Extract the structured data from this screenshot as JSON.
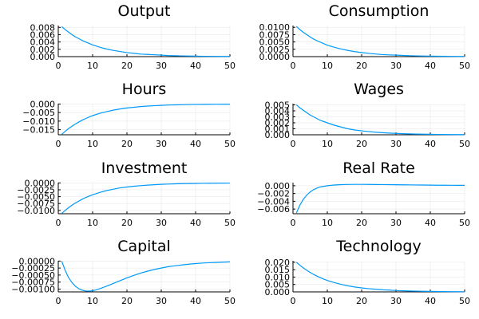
{
  "page": {
    "background": "#ffffff"
  },
  "colors": {
    "series": "#009af9"
  },
  "chart_data": [
    {
      "type": "line",
      "title": "Output",
      "xlim": [
        0,
        50
      ],
      "ylim": [
        0,
        0.0085
      ],
      "xticks": [
        0,
        10,
        20,
        30,
        40,
        50
      ],
      "xtick_labels": [
        "0",
        "10",
        "20",
        "30",
        "40",
        "50"
      ],
      "yticks": [
        0,
        0.002,
        0.004,
        0.006,
        0.008
      ],
      "ytick_labels": [
        "0.000",
        "0.002",
        "0.004",
        "0.006",
        "0.008"
      ],
      "grid": true,
      "legend": false,
      "series": [
        {
          "x": [
            1,
            2,
            3,
            4,
            5,
            6,
            7,
            8,
            9,
            10,
            12,
            14,
            16,
            18,
            20,
            22,
            24,
            26,
            28,
            30,
            32,
            34,
            36,
            38,
            40,
            42,
            44,
            46,
            48,
            50
          ],
          "values": [
            0.0082,
            0.0074,
            0.0067,
            0.006,
            0.0054,
            0.0049,
            0.0044,
            0.004,
            0.0036,
            0.0032,
            0.0026,
            0.0021,
            0.0017,
            0.0014,
            0.0011,
            0.0009,
            0.0007,
            0.0006,
            0.0005,
            0.0004,
            0.0003,
            0.00025,
            0.0002,
            0.00016,
            0.00013,
            0.0001,
            8e-05,
            7e-05,
            6e-05,
            5e-05
          ]
        }
      ]
    },
    {
      "type": "line",
      "title": "Consumption",
      "xlim": [
        0,
        50
      ],
      "ylim": [
        0,
        0.0106
      ],
      "xticks": [
        0,
        10,
        20,
        30,
        40,
        50
      ],
      "xtick_labels": [
        "0",
        "10",
        "20",
        "30",
        "40",
        "50"
      ],
      "yticks": [
        0,
        0.0025,
        0.005,
        0.0075,
        0.01
      ],
      "ytick_labels": [
        "0.0000",
        "0.0025",
        "0.0050",
        "0.0075",
        "0.0100"
      ],
      "grid": true,
      "legend": false,
      "series": [
        {
          "x": [
            1,
            2,
            3,
            4,
            5,
            6,
            7,
            8,
            9,
            10,
            12,
            14,
            16,
            18,
            20,
            22,
            24,
            26,
            28,
            30,
            32,
            34,
            36,
            38,
            40,
            42,
            44,
            46,
            48,
            50
          ],
          "values": [
            0.0103,
            0.0092,
            0.0083,
            0.0075,
            0.0067,
            0.006,
            0.0054,
            0.0049,
            0.0044,
            0.0039,
            0.0032,
            0.0026,
            0.0021,
            0.0017,
            0.0014,
            0.0011,
            0.0009,
            0.0007,
            0.0006,
            0.0005,
            0.0004,
            0.00032,
            0.00026,
            0.0002,
            0.00016,
            0.00013,
            0.0001,
            8e-05,
            7e-05,
            6e-05
          ]
        }
      ]
    },
    {
      "type": "line",
      "title": "Hours",
      "xlim": [
        0,
        50
      ],
      "ylim": [
        -0.018,
        0.0002
      ],
      "xticks": [
        0,
        10,
        20,
        30,
        40,
        50
      ],
      "xtick_labels": [
        "0",
        "10",
        "20",
        "30",
        "40",
        "50"
      ],
      "yticks": [
        -0.015,
        -0.01,
        -0.005,
        0
      ],
      "ytick_labels": [
        "−0.015",
        "−0.010",
        "−0.005",
        "0.000"
      ],
      "grid": true,
      "legend": false,
      "series": [
        {
          "x": [
            1,
            2,
            3,
            4,
            5,
            6,
            7,
            8,
            9,
            10,
            12,
            14,
            16,
            18,
            20,
            22,
            24,
            26,
            28,
            30,
            32,
            34,
            36,
            38,
            40,
            42,
            44,
            46,
            48,
            50
          ],
          "values": [
            -0.0178,
            -0.016,
            -0.0144,
            -0.013,
            -0.0117,
            -0.0105,
            -0.0094,
            -0.0085,
            -0.0076,
            -0.0068,
            -0.0055,
            -0.0045,
            -0.0036,
            -0.0029,
            -0.0023,
            -0.0019,
            -0.0015,
            -0.0012,
            -0.001,
            -0.0008,
            -0.0006,
            -0.0005,
            -0.0004,
            -0.0003,
            -0.00025,
            -0.0002,
            -0.00016,
            -0.00013,
            -0.0001,
            -8e-05
          ]
        }
      ]
    },
    {
      "type": "line",
      "title": "Wages",
      "xlim": [
        0,
        50
      ],
      "ylim": [
        0,
        0.0052
      ],
      "xticks": [
        0,
        10,
        20,
        30,
        40,
        50
      ],
      "xtick_labels": [
        "0",
        "10",
        "20",
        "30",
        "40",
        "50"
      ],
      "yticks": [
        0,
        0.001,
        0.002,
        0.003,
        0.004,
        0.005
      ],
      "ytick_labels": [
        "0.000",
        "0.001",
        "0.002",
        "0.003",
        "0.004",
        "0.005"
      ],
      "grid": true,
      "legend": false,
      "series": [
        {
          "x": [
            1,
            2,
            3,
            4,
            5,
            6,
            7,
            8,
            9,
            10,
            12,
            14,
            16,
            18,
            20,
            22,
            24,
            26,
            28,
            30,
            32,
            34,
            36,
            38,
            40,
            42,
            44,
            46,
            48,
            50
          ],
          "values": [
            0.005,
            0.0045,
            0.0041,
            0.0037,
            0.0033,
            0.003,
            0.0027,
            0.0024,
            0.0022,
            0.002,
            0.0016,
            0.0013,
            0.001,
            0.0008,
            0.00066,
            0.00054,
            0.00043,
            0.00035,
            0.00028,
            0.00023,
            0.00018,
            0.00015,
            0.00012,
            0.0001,
            8e-05,
            6e-05,
            5e-05,
            4e-05,
            3e-05,
            3e-05
          ]
        }
      ]
    },
    {
      "type": "line",
      "title": "Investment",
      "xlim": [
        0,
        50
      ],
      "ylim": [
        -0.0112,
        0.0001
      ],
      "xticks": [
        0,
        10,
        20,
        30,
        40,
        50
      ],
      "xtick_labels": [
        "0",
        "10",
        "20",
        "30",
        "40",
        "50"
      ],
      "yticks": [
        -0.01,
        -0.0075,
        -0.005,
        -0.0025,
        0
      ],
      "ytick_labels": [
        "−0.0100",
        "−0.0075",
        "−0.0050",
        "−0.0025",
        "0.0000"
      ],
      "grid": true,
      "legend": false,
      "series": [
        {
          "x": [
            1,
            2,
            3,
            4,
            5,
            6,
            7,
            8,
            9,
            10,
            12,
            14,
            16,
            18,
            20,
            22,
            24,
            26,
            28,
            30,
            32,
            34,
            36,
            38,
            40,
            42,
            44,
            46,
            48,
            50
          ],
          "values": [
            -0.0111,
            -0.01,
            -0.009,
            -0.0081,
            -0.0073,
            -0.0066,
            -0.0059,
            -0.0053,
            -0.0048,
            -0.0043,
            -0.0035,
            -0.0028,
            -0.0023,
            -0.0018,
            -0.0015,
            -0.0012,
            -0.001,
            -0.0008,
            -0.00065,
            -0.00052,
            -0.00042,
            -0.00034,
            -0.00027,
            -0.00022,
            -0.00018,
            -0.00014,
            -0.00011,
            -9e-05,
            -7e-05,
            -6e-05
          ]
        }
      ]
    },
    {
      "type": "line",
      "title": "Real Rate",
      "xlim": [
        0,
        50
      ],
      "ylim": [
        -0.0072,
        0.0008
      ],
      "xticks": [
        0,
        10,
        20,
        30,
        40,
        50
      ],
      "xtick_labels": [
        "0",
        "10",
        "20",
        "30",
        "40",
        "50"
      ],
      "yticks": [
        -0.006,
        -0.004,
        -0.002,
        0
      ],
      "ytick_labels": [
        "−0.006",
        "−0.004",
        "−0.002",
        "0.000"
      ],
      "grid": true,
      "legend": false,
      "series": [
        {
          "x": [
            1,
            2,
            3,
            4,
            5,
            6,
            7,
            8,
            10,
            12,
            14,
            16,
            18,
            20,
            22,
            24,
            26,
            28,
            30,
            32,
            34,
            36,
            38,
            40,
            42,
            44,
            46,
            48,
            50
          ],
          "values": [
            -0.007,
            -0.005,
            -0.0035,
            -0.0024,
            -0.0016,
            -0.001,
            -0.0006,
            -0.0003,
            0.0,
            0.00018,
            0.00028,
            0.00033,
            0.00035,
            0.00035,
            0.00034,
            0.00032,
            0.0003,
            0.00028,
            0.00026,
            0.00024,
            0.00022,
            0.0002,
            0.00018,
            0.00016,
            0.00014,
            0.00013,
            0.00012,
            0.00011,
            0.0001
          ]
        }
      ]
    },
    {
      "type": "line",
      "title": "Capital",
      "xlim": [
        0,
        50
      ],
      "ylim": [
        -0.0011,
        1e-05
      ],
      "xticks": [
        0,
        10,
        20,
        30,
        40,
        50
      ],
      "xtick_labels": [
        "0",
        "10",
        "20",
        "30",
        "40",
        "50"
      ],
      "yticks": [
        -0.001,
        -0.00075,
        -0.0005,
        -0.00025,
        0
      ],
      "ytick_labels": [
        "−0.00100",
        "−0.00075",
        "−0.00050",
        "−0.00025",
        "0.00000"
      ],
      "grid": true,
      "legend": false,
      "series": [
        {
          "x": [
            1,
            2,
            3,
            4,
            5,
            6,
            7,
            8,
            9,
            10,
            11,
            12,
            14,
            16,
            18,
            20,
            22,
            24,
            26,
            28,
            30,
            32,
            34,
            36,
            38,
            40,
            42,
            44,
            46,
            48,
            50
          ],
          "values": [
            0,
            -0.00033,
            -0.00059,
            -0.00077,
            -0.0009,
            -0.00099,
            -0.00104,
            -0.00107,
            -0.00107,
            -0.00106,
            -0.00103,
            -0.00099,
            -0.0009,
            -0.0008,
            -0.0007,
            -0.0006,
            -0.00051,
            -0.00043,
            -0.00036,
            -0.0003,
            -0.00025,
            -0.0002,
            -0.00017,
            -0.00014,
            -0.00011,
            -9e-05,
            -7e-05,
            -6e-05,
            -5e-05,
            -4e-05,
            -3e-05
          ]
        }
      ]
    },
    {
      "type": "line",
      "title": "Technology",
      "xlim": [
        0,
        50
      ],
      "ylim": [
        0,
        0.021
      ],
      "xticks": [
        0,
        10,
        20,
        30,
        40,
        50
      ],
      "xtick_labels": [
        "0",
        "10",
        "20",
        "30",
        "40",
        "50"
      ],
      "yticks": [
        0,
        0.005,
        0.01,
        0.015,
        0.02
      ],
      "ytick_labels": [
        "0.000",
        "0.005",
        "0.010",
        "0.015",
        "0.020"
      ],
      "grid": true,
      "legend": false,
      "series": [
        {
          "x": [
            1,
            2,
            3,
            4,
            5,
            6,
            7,
            8,
            9,
            10,
            12,
            14,
            16,
            18,
            20,
            22,
            24,
            26,
            28,
            30,
            32,
            34,
            36,
            38,
            40,
            42,
            44,
            46,
            48,
            50
          ],
          "values": [
            0.02,
            0.018,
            0.0162,
            0.0146,
            0.0131,
            0.0118,
            0.0106,
            0.0096,
            0.0086,
            0.0077,
            0.0063,
            0.0051,
            0.0041,
            0.0033,
            0.0027,
            0.0022,
            0.0018,
            0.0014,
            0.0012,
            0.0009,
            0.00075,
            0.0006,
            0.0005,
            0.0004,
            0.00032,
            0.00026,
            0.00021,
            0.00017,
            0.00014,
            0.00011
          ]
        }
      ]
    }
  ]
}
